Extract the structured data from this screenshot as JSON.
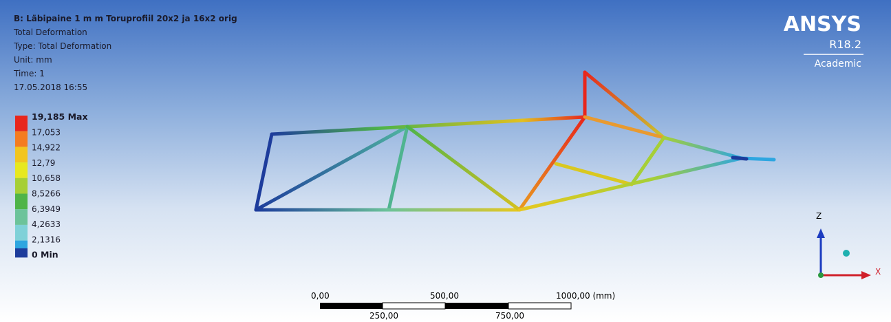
{
  "header": {
    "title": "B: Läbipaine 1 m m Toruprofiil 20x2 ja 16x2 orig",
    "lines": [
      "Total Deformation",
      "Type: Total Deformation",
      "Unit: mm",
      "Time: 1",
      "17.05.2018 16:55"
    ]
  },
  "legend": {
    "items": [
      {
        "label": "19,185 Max",
        "color": "#e8261c"
      },
      {
        "label": "17,053",
        "color": "#f47c20"
      },
      {
        "label": "14,922",
        "color": "#f2c51f"
      },
      {
        "label": "12,79",
        "color": "#e7e81f"
      },
      {
        "label": "10,658",
        "color": "#a6cf36"
      },
      {
        "label": "8,5266",
        "color": "#4fb448"
      },
      {
        "label": "6,3949",
        "color": "#6cc39a"
      },
      {
        "label": "4,2633",
        "color": "#7fd1d8"
      },
      {
        "label": "2,1316",
        "color": "#2ea6e0"
      },
      {
        "label": "0 Min",
        "color": "#1d3c9c"
      }
    ]
  },
  "logo": {
    "name": "ANSYS",
    "version": "R18.2",
    "edition": "Academic"
  },
  "scale_bar": {
    "top_labels": [
      "0,00",
      "500,00",
      "1000,00 (mm)"
    ],
    "bottom_labels": [
      "250,00",
      "750,00"
    ]
  },
  "triad": {
    "z": "Z",
    "x": "X"
  }
}
